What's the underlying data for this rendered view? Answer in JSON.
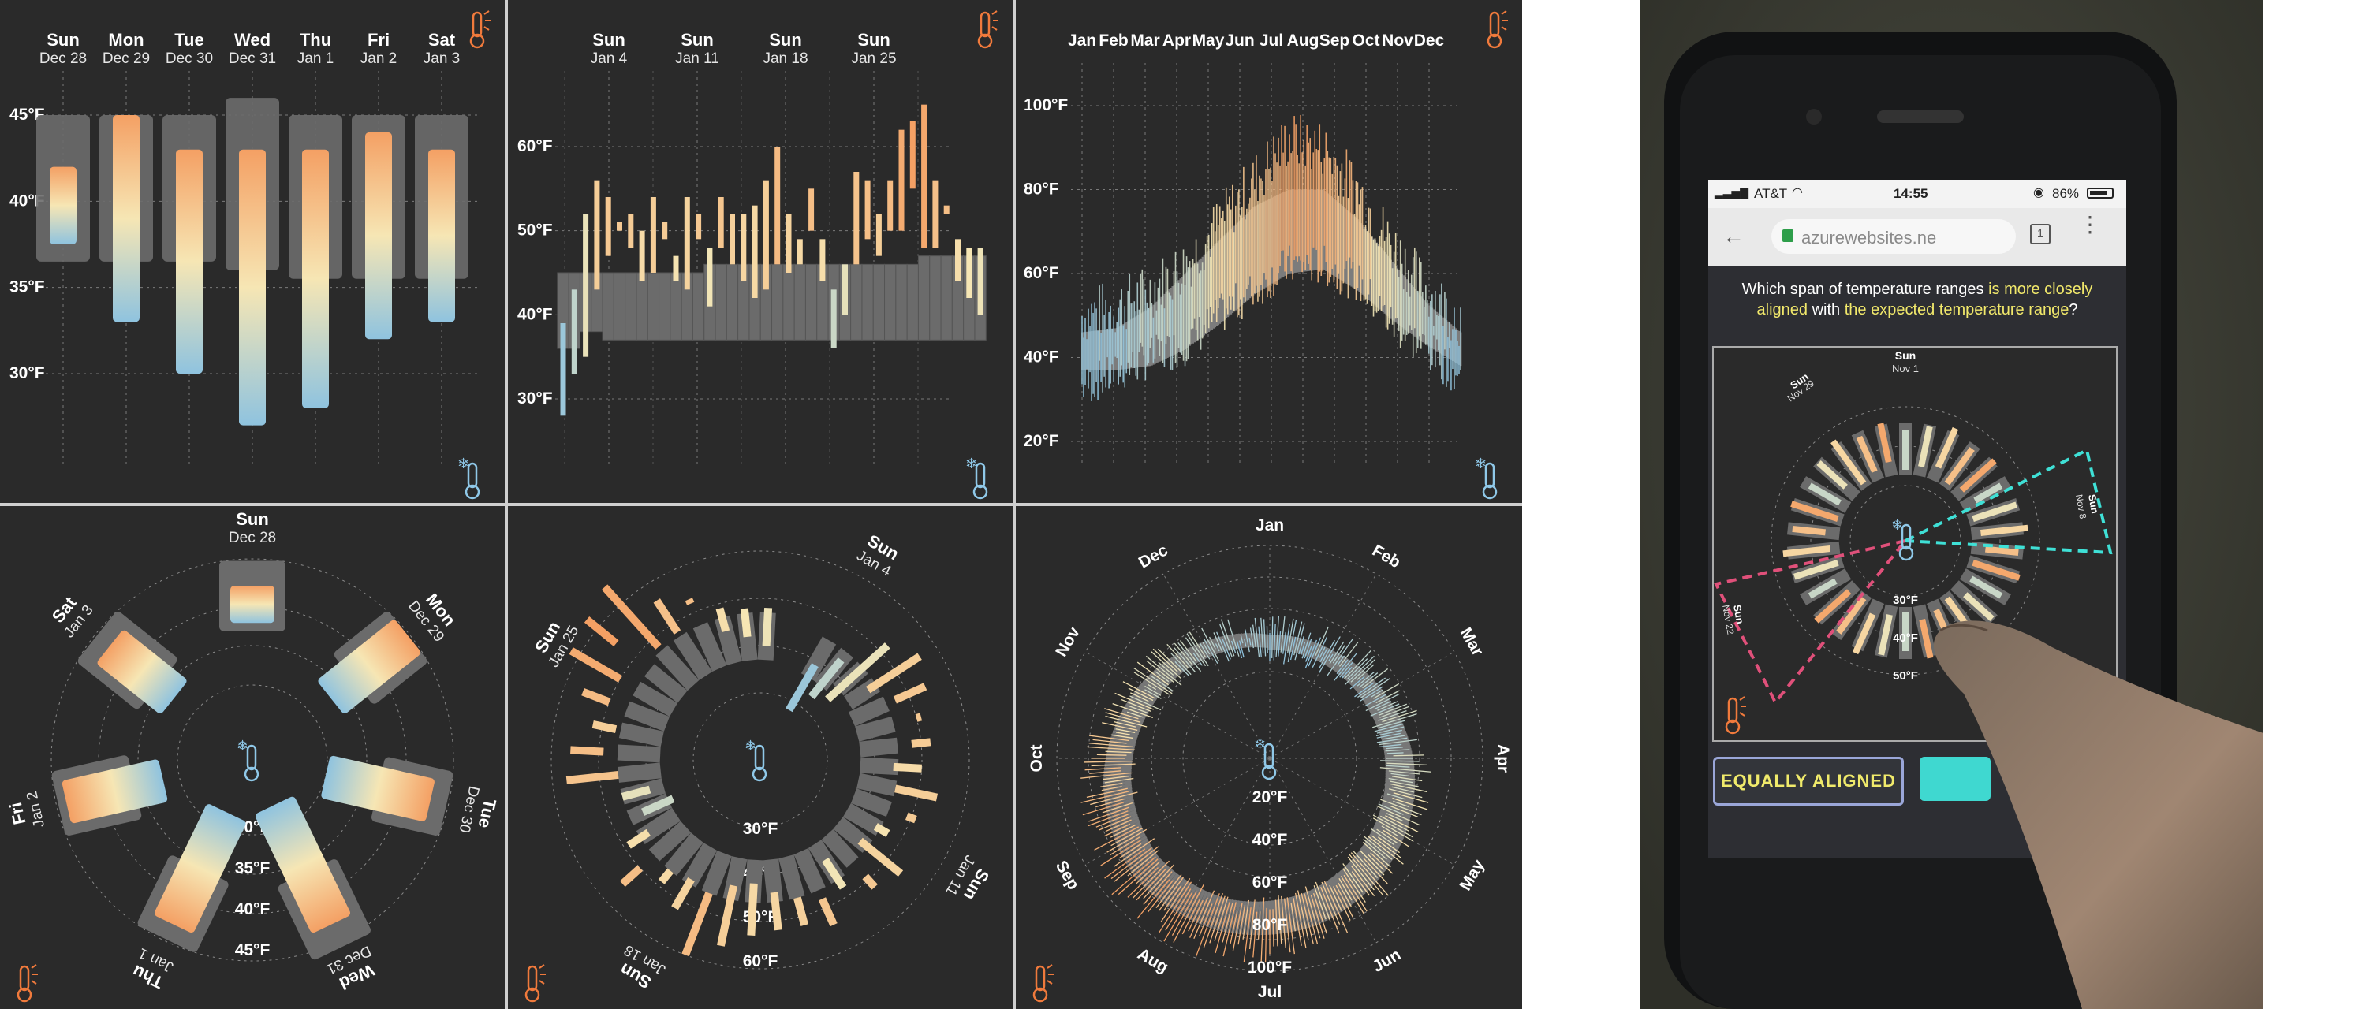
{
  "colors": {
    "panel_bg": "#2a2a2a",
    "box_gray": "#6b6b6b",
    "warm_top": "#f4a064",
    "mid": "#f6e6b4",
    "cold_bottom": "#8fc3df",
    "grid": "#7a7a7a",
    "hot_icon": "#f07a3c",
    "cold_icon": "#8fc8e8",
    "highlight_yellow": "#f1e86b",
    "cyan_dash": "#3fe0d6",
    "pink_dash": "#e0507a"
  },
  "icons": [
    "thermometer-hot-icon",
    "thermometer-cold-icon",
    "thermometer-center-icon",
    "wifi-icon",
    "back-arrow-icon",
    "lock-icon",
    "tabs-icon",
    "menu-dots-icon",
    "alarm-icon",
    "battery-icon"
  ],
  "chart_data": [
    {
      "id": "week-bar",
      "type": "bar",
      "days": [
        {
          "day": "Sun",
          "date": "Dec 28",
          "expected": [
            36.5,
            45
          ],
          "actual": [
            37.5,
            42
          ]
        },
        {
          "day": "Mon",
          "date": "Dec 29",
          "expected": [
            36.5,
            45
          ],
          "actual": [
            33,
            45
          ]
        },
        {
          "day": "Tue",
          "date": "Dec 30",
          "expected": [
            36.5,
            45
          ],
          "actual": [
            30,
            43
          ]
        },
        {
          "day": "Wed",
          "date": "Dec 31",
          "expected": [
            36,
            46
          ],
          "actual": [
            27,
            43
          ]
        },
        {
          "day": "Thu",
          "date": "Jan 1",
          "expected": [
            35.5,
            45
          ],
          "actual": [
            28,
            43
          ]
        },
        {
          "day": "Fri",
          "date": "Jan 2",
          "expected": [
            35.5,
            45
          ],
          "actual": [
            32,
            44
          ]
        },
        {
          "day": "Sat",
          "date": "Jan 3",
          "expected": [
            35.5,
            45
          ],
          "actual": [
            33,
            43
          ]
        }
      ],
      "y_ticks": [
        "45°F",
        "40°F",
        "35°F",
        "30°F"
      ],
      "ylim": [
        25,
        46
      ],
      "grid": true
    },
    {
      "id": "month-bar",
      "type": "bar",
      "x_labels": [
        {
          "day": "Sun",
          "date": "Jan 4"
        },
        {
          "day": "Sun",
          "date": "Jan 11"
        },
        {
          "day": "Sun",
          "date": "Jan 18"
        },
        {
          "day": "Sun",
          "date": "Jan 25"
        }
      ],
      "y_ticks": [
        "60°F",
        "50°F",
        "40°F",
        "30°F"
      ],
      "ylim": [
        23,
        67
      ],
      "expected_low": [
        36,
        36,
        38,
        38,
        37,
        37,
        37,
        37,
        37,
        37,
        37,
        37,
        37,
        37,
        37,
        37,
        37,
        37,
        37,
        37,
        37,
        37,
        37,
        37,
        37,
        37,
        37,
        37,
        37,
        37,
        37,
        37,
        37,
        37,
        37,
        37,
        37,
        37
      ],
      "expected_high": [
        45,
        45,
        45,
        45,
        45,
        45,
        45,
        45,
        45,
        45,
        45,
        45,
        45,
        46,
        46,
        46,
        46,
        46,
        46,
        46,
        46,
        46,
        46,
        46,
        46,
        46,
        46,
        46,
        46,
        46,
        46,
        46,
        47,
        47,
        47,
        47,
        47,
        47
      ],
      "actual_low": [
        28,
        33,
        35,
        43,
        47,
        50,
        48,
        44,
        45,
        49,
        44,
        43,
        49,
        41,
        48,
        46,
        44,
        42,
        43,
        46,
        45,
        46,
        50,
        44,
        36,
        40,
        46,
        49,
        47,
        50,
        50,
        55,
        48,
        48,
        52,
        44,
        42,
        40
      ],
      "actual_high": [
        39,
        43,
        52,
        56,
        54,
        51,
        52,
        50,
        54,
        51,
        47,
        54,
        52,
        48,
        54,
        52,
        52,
        53,
        56,
        60,
        52,
        49,
        55,
        49,
        43,
        46,
        57,
        56,
        52,
        56,
        62,
        63,
        65,
        56,
        53,
        49,
        48,
        48
      ]
    },
    {
      "id": "year-bar",
      "type": "bar",
      "months": [
        "Jan",
        "Feb",
        "Mar",
        "Apr",
        "May",
        "Jun",
        "Jul",
        "Aug",
        "Sep",
        "Oct",
        "Nov",
        "Dec"
      ],
      "y_ticks": [
        "100°F",
        "80°F",
        "60°F",
        "40°F",
        "20°F"
      ],
      "ylim": [
        15,
        105
      ],
      "expected_low": [
        37,
        37,
        38,
        42,
        48,
        55,
        60,
        61,
        56,
        49,
        43,
        38
      ],
      "expected_high": [
        46,
        47,
        52,
        60,
        68,
        76,
        80,
        80,
        73,
        63,
        53,
        46
      ],
      "actual_low": [
        33,
        36,
        40,
        43,
        50,
        56,
        62,
        62,
        58,
        48,
        42,
        35
      ],
      "actual_high": [
        50,
        52,
        56,
        62,
        72,
        82,
        92,
        90,
        80,
        67,
        56,
        49
      ]
    },
    {
      "id": "week-radial",
      "type": "radial-bar",
      "labels": [
        {
          "day": "Sun",
          "date": "Dec 28"
        },
        {
          "day": "Mon",
          "date": "Dec 29"
        },
        {
          "day": "Tue",
          "date": "Dec 30"
        },
        {
          "day": "Wed",
          "date": "Dec 31"
        },
        {
          "day": "Thu",
          "date": "Jan 1"
        },
        {
          "day": "Fri",
          "date": "Jan 2"
        },
        {
          "day": "Sat",
          "date": "Jan 3"
        }
      ],
      "ring_ticks": [
        "30°F",
        "35°F",
        "40°F",
        "45°F"
      ],
      "expected": [
        [
          36.5,
          45
        ],
        [
          36.5,
          45
        ],
        [
          36.5,
          45
        ],
        [
          36,
          46
        ],
        [
          35.5,
          45
        ],
        [
          35.5,
          45
        ],
        [
          35.5,
          45
        ]
      ],
      "actual": [
        [
          37.5,
          42
        ],
        [
          33,
          45
        ],
        [
          30,
          43
        ],
        [
          27,
          43
        ],
        [
          28,
          43
        ],
        [
          32,
          44
        ],
        [
          33,
          43
        ]
      ]
    },
    {
      "id": "month-radial",
      "type": "radial-bar",
      "labels": [
        {
          "day": "Sun",
          "date": "Jan 4"
        },
        {
          "day": "Sun",
          "date": "Jan 11"
        },
        {
          "day": "Sun",
          "date": "Jan 18"
        },
        {
          "day": "Sun",
          "date": "Jan 25"
        }
      ],
      "ring_ticks": [
        "30°F",
        "40°F",
        "50°F",
        "60°F"
      ]
    },
    {
      "id": "year-radial",
      "type": "radial-bar",
      "months": [
        "Jan",
        "Feb",
        "Mar",
        "Apr",
        "May",
        "Jun",
        "Jul",
        "Aug",
        "Sep",
        "Oct",
        "Nov",
        "Dec"
      ],
      "ring_ticks": [
        "20°F",
        "40°F",
        "60°F",
        "80°F",
        "100°F"
      ]
    }
  ],
  "phone": {
    "status": {
      "carrier": "AT&T",
      "time": "14:55",
      "battery": "86%"
    },
    "url": "azurewebsites.ne",
    "tab_count": "1",
    "question": {
      "p1": "Which span of temperature ranges ",
      "p2": "is more closely aligned",
      "p3": " with ",
      "p4": "the expected temperature range",
      "p5": "?"
    },
    "chart_labels": {
      "top_day": "Sun",
      "top_date": "Nov 1",
      "left_day": "Sun",
      "left_date": "Nov 29",
      "right_day": "Sun",
      "right_date": "Nov 8",
      "bottom_left_day": "Sun",
      "bottom_left_date": "Nov 22",
      "ticks": [
        "30°F",
        "40°F",
        "50°F"
      ]
    },
    "button_equal": "EQUALLY ALIGNED"
  }
}
